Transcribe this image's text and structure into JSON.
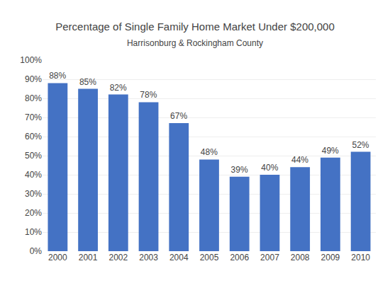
{
  "chart_data": {
    "type": "bar",
    "title": "Percentage of Single Family Home Market Under $200,000",
    "subtitle": "Harrisonburg & Rockingham County",
    "categories": [
      "2000",
      "2001",
      "2002",
      "2003",
      "2004",
      "2005",
      "2006",
      "2007",
      "2008",
      "2009",
      "2010"
    ],
    "values": [
      0.88,
      0.85,
      0.82,
      0.78,
      0.67,
      0.48,
      0.39,
      0.4,
      0.44,
      0.49,
      0.52
    ],
    "value_labels": [
      "88%",
      "85%",
      "82%",
      "78%",
      "67%",
      "48%",
      "39%",
      "40%",
      "44%",
      "49%",
      "52%"
    ],
    "data_labels": true,
    "color": "#4472C4",
    "ylim": [
      0,
      1.0
    ],
    "yticks": [
      {
        "value": 0,
        "label": "0%"
      },
      {
        "value": 0.1,
        "label": "10%"
      },
      {
        "value": 0.2,
        "label": "20%"
      },
      {
        "value": 0.3,
        "label": "30%"
      },
      {
        "value": 0.4,
        "label": "40%"
      },
      {
        "value": 0.5,
        "label": "50%"
      },
      {
        "value": 0.6,
        "label": "60%"
      },
      {
        "value": 0.7,
        "label": "70%"
      },
      {
        "value": 0.8,
        "label": "80%"
      },
      {
        "value": 0.9,
        "label": "90%"
      },
      {
        "value": 1.0,
        "label": "100%"
      }
    ],
    "grid": true
  }
}
